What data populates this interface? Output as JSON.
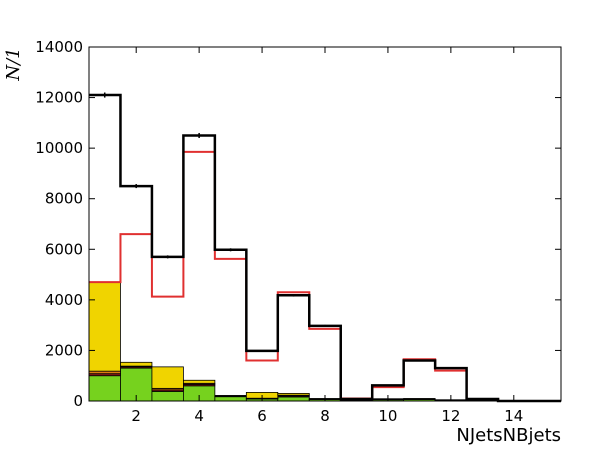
{
  "chart_data": {
    "type": "bar",
    "subtype": "stacked-step-histogram",
    "xlabel": "NJetsNBjets",
    "ylabel": "N/1",
    "xlim": [
      0.5,
      15.5
    ],
    "ylim": [
      0,
      14000
    ],
    "xticks": [
      2,
      4,
      6,
      8,
      10,
      12,
      14
    ],
    "yticks": [
      0,
      2000,
      4000,
      6000,
      8000,
      10000,
      12000,
      14000
    ],
    "grid": false,
    "bins": [
      1,
      2,
      3,
      4,
      5,
      6,
      7,
      8,
      9,
      10,
      11,
      12,
      13,
      14,
      15
    ],
    "stack": [
      {
        "color": "#76d21e",
        "values": [
          1000,
          1300,
          380,
          600,
          170,
          80,
          160,
          60,
          20,
          50,
          60,
          30,
          10,
          0,
          0
        ]
      },
      {
        "color": "#8b1a1a",
        "values": [
          80,
          50,
          60,
          60,
          20,
          20,
          40,
          10,
          5,
          10,
          10,
          5,
          5,
          0,
          0
        ]
      },
      {
        "color": "#e07a10",
        "values": [
          100,
          30,
          60,
          40,
          10,
          10,
          30,
          10,
          5,
          10,
          10,
          5,
          5,
          0,
          0
        ]
      },
      {
        "color": "#f0d400",
        "values": [
          3520,
          150,
          850,
          120,
          20,
          230,
          70,
          20,
          10,
          20,
          20,
          10,
          10,
          0,
          0
        ]
      }
    ],
    "series": [
      {
        "color": "#e03030",
        "values": [
          4700,
          6600,
          4130,
          9850,
          5620,
          1600,
          4300,
          2850,
          100,
          550,
          1650,
          1200,
          80,
          0,
          0
        ]
      },
      {
        "color": "#000000",
        "values": [
          12100,
          8500,
          5700,
          10500,
          5980,
          1980,
          4180,
          2970,
          80,
          620,
          1600,
          1300,
          80,
          0,
          0
        ],
        "errors": [
          100,
          80,
          60,
          100,
          60,
          30,
          50,
          40,
          10,
          20,
          30,
          30,
          10,
          0,
          0
        ]
      }
    ]
  }
}
